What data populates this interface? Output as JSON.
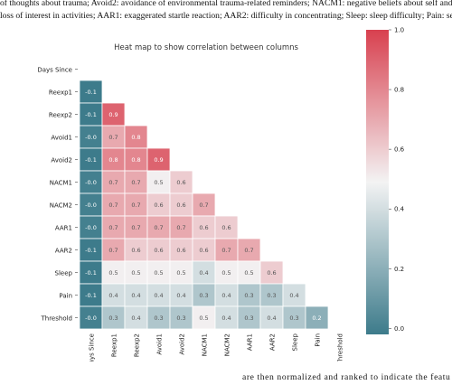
{
  "header_text": {
    "lines": [
      "of thoughts about trauma; Avoid2: avoidance of environmental trauma-related reminders; NACM1: negative beliefs about self and the world; NACM2:",
      "loss of interest in activities; AAR1: exaggerated startle reaction; AAR2: difficulty in concentrating; Sleep: sleep difficulty; Pain: self-reported pain."
    ]
  },
  "chart_data": {
    "type": "heatmap",
    "title": "Heat map to show correlation between columns",
    "rows": [
      "Days Since",
      "Reexp1",
      "Reexp2",
      "Avoid1",
      "Avoid2",
      "NACM1",
      "NACM2",
      "AAR1",
      "AAR2",
      "Sleep",
      "Pain",
      "Threshold"
    ],
    "columns": [
      "Days Since",
      "Reexp1",
      "Reexp2",
      "Avoid1",
      "Avoid2",
      "NACM1",
      "NACM2",
      "AAR1",
      "AAR2",
      "Sleep",
      "Pain",
      "Threshold"
    ],
    "values": [
      [],
      [
        -0.1
      ],
      [
        -0.1,
        0.9
      ],
      [
        -0.0,
        0.7,
        0.8
      ],
      [
        -0.1,
        0.8,
        0.8,
        0.9
      ],
      [
        -0.0,
        0.7,
        0.7,
        0.5,
        0.6
      ],
      [
        -0.0,
        0.7,
        0.7,
        0.6,
        0.6,
        0.7
      ],
      [
        -0.0,
        0.7,
        0.7,
        0.7,
        0.7,
        0.6,
        0.6
      ],
      [
        -0.1,
        0.7,
        0.6,
        0.6,
        0.6,
        0.6,
        0.7,
        0.7
      ],
      [
        -0.1,
        0.5,
        0.5,
        0.5,
        0.5,
        0.4,
        0.5,
        0.5,
        0.6
      ],
      [
        -0.1,
        0.4,
        0.4,
        0.4,
        0.4,
        0.3,
        0.4,
        0.3,
        0.3,
        0.4
      ],
      [
        -0.0,
        0.3,
        0.4,
        0.3,
        0.3,
        0.5,
        0.4,
        0.3,
        0.4,
        0.3,
        0.2
      ]
    ],
    "value_labels": [
      [],
      [
        "-0.1"
      ],
      [
        "-0.1",
        "0.9"
      ],
      [
        "-0.0",
        "0.7",
        "0.8"
      ],
      [
        "-0.1",
        "0.8",
        "0.8",
        "0.9"
      ],
      [
        "-0.0",
        "0.7",
        "0.7",
        "0.5",
        "0.6"
      ],
      [
        "-0.0",
        "0.7",
        "0.7",
        "0.6",
        "0.6",
        "0.7"
      ],
      [
        "-0.0",
        "0.7",
        "0.7",
        "0.7",
        "0.7",
        "0.6",
        "0.6"
      ],
      [
        "-0.1",
        "0.7",
        "0.6",
        "0.6",
        "0.6",
        "0.6",
        "0.7",
        "0.7"
      ],
      [
        "-0.1",
        "0.5",
        "0.5",
        "0.5",
        "0.5",
        "0.4",
        "0.5",
        "0.5",
        "0.6"
      ],
      [
        "-0.1",
        "0.4",
        "0.4",
        "0.4",
        "0.4",
        "0.3",
        "0.4",
        "0.3",
        "0.3",
        "0.4"
      ],
      [
        "-0.0",
        "0.3",
        "0.4",
        "0.3",
        "0.3",
        "0.5",
        "0.4",
        "0.3",
        "0.4",
        "0.3",
        "0.2"
      ]
    ],
    "colormap": [
      "#3d7b8b",
      "#f3f3f3",
      "#d8404f"
    ],
    "clim": [
      -0.02,
      1.0
    ],
    "cticks": [
      {
        "value": 0.0,
        "label": "0.0"
      },
      0.2,
      0.4,
      0.6,
      0.8,
      {
        "value": 1.0,
        "label": "1.0"
      }
    ]
  },
  "footer_text": "are then normalized and ranked to indicate the featu"
}
